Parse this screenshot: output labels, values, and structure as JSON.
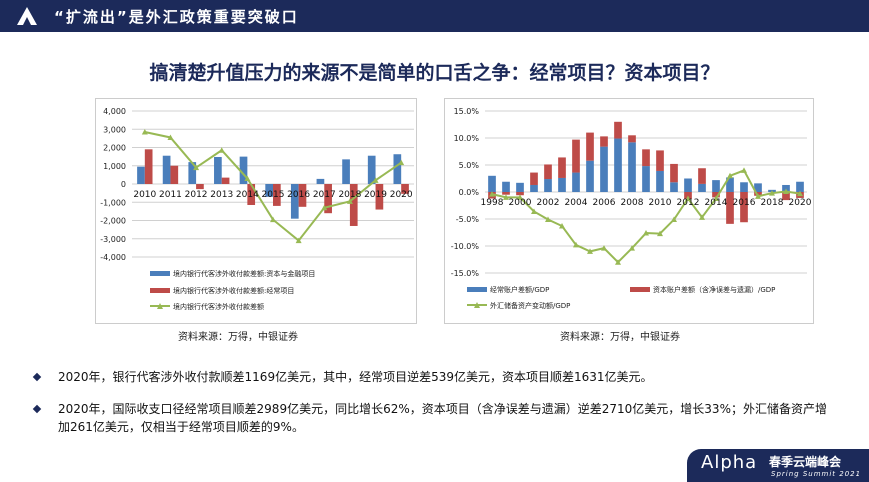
{
  "header": {
    "title": "“扩流出”是外汇政策重要突破口",
    "logo_icon": "alpha-triangle-icon"
  },
  "main_title": "搞清楚升值压力的来源不是简单的口舌之争：经常项目？资本项目？",
  "sources": {
    "left": "资料来源：万得，中银证券",
    "right": "资料来源：万得，中银证券"
  },
  "bullets": [
    "2020年，银行代客涉外收付款顺差1169亿美元，其中，经常项目逆差539亿美元，资本项目顺差1631亿美元。",
    "2020年，国际收支口径经常项目顺差2989亿美元，同比增长62%，资本项目（含净误差与遗漏）逆差2710亿美元，增长33%；外汇储备资产增加261亿美元，仅相当于经常项目顺差的9%。"
  ],
  "footer": {
    "brand": "Alpha",
    "event": "春季云端峰会",
    "sub": "Spring Summit 2021"
  },
  "chart_data": [
    {
      "type": "bar",
      "stacked": false,
      "ylim": [
        -4000,
        4000
      ],
      "yticks": [
        "4,000",
        "3,000",
        "2,000",
        "1,000",
        "0",
        "-1,000",
        "-2,000",
        "-3,000",
        "-4,000"
      ],
      "categories": [
        "2010",
        "2011",
        "2012",
        "2013",
        "2014",
        "2015",
        "2016",
        "2017",
        "2018",
        "2019",
        "2020"
      ],
      "grid": true,
      "legend": "bottom",
      "series": [
        {
          "name": "境内银行代客涉外收付款差额:资本与金融项目",
          "type": "bar",
          "color": "#4a7ebb",
          "values": [
            950,
            1550,
            1200,
            1480,
            1500,
            -700,
            -1900,
            280,
            1350,
            1550,
            1631
          ]
        },
        {
          "name": "境内银行代客涉外收付款差额:经常项目",
          "type": "bar",
          "color": "#be4b48",
          "values": [
            1900,
            1000,
            -280,
            350,
            -1150,
            -1200,
            -1250,
            -1600,
            -2300,
            -1400,
            -539
          ]
        },
        {
          "name": "境内银行代客涉外收付款差额",
          "type": "line",
          "color": "#98b954",
          "values": [
            2850,
            2550,
            900,
            1850,
            300,
            -1950,
            -3100,
            -1300,
            -950,
            200,
            1169
          ]
        }
      ]
    },
    {
      "type": "bar",
      "stacked": true,
      "ylim": [
        -15,
        15
      ],
      "yticks": [
        "15.0%",
        "10.0%",
        "5.0%",
        "0.0%",
        "-5.0%",
        "-10.0%",
        "-15.0%"
      ],
      "categories": [
        "1998",
        "1999",
        "2000",
        "2001",
        "2002",
        "2003",
        "2004",
        "2005",
        "2006",
        "2007",
        "2008",
        "2009",
        "2010",
        "2011",
        "2012",
        "2013",
        "2014",
        "2015",
        "2016",
        "2017",
        "2018",
        "2019",
        "2020"
      ],
      "xticklabels": [
        "1998",
        "2000",
        "2002",
        "2004",
        "2006",
        "2008",
        "2010",
        "2012",
        "2014",
        "2016",
        "2018",
        "2020"
      ],
      "grid": true,
      "legend": "bottom",
      "series": [
        {
          "name": "经常账户差额/GDP",
          "type": "bar",
          "color": "#4a7ebb",
          "values": [
            3.0,
            1.9,
            1.7,
            1.3,
            2.4,
            2.6,
            3.6,
            5.8,
            8.4,
            9.9,
            9.2,
            4.8,
            3.9,
            1.8,
            2.5,
            1.5,
            2.2,
            2.7,
            1.8,
            1.6,
            0.4,
            1.3,
            1.9
          ]
        },
        {
          "name": "资本账户差额（含净误差与遗漏）/GDP",
          "type": "bar",
          "color": "#be4b48",
          "values": [
            -1.2,
            -0.5,
            -0.6,
            2.3,
            2.7,
            3.8,
            6.1,
            5.2,
            1.9,
            3.1,
            1.3,
            3.1,
            3.8,
            3.4,
            -1.3,
            2.9,
            -1.0,
            -5.9,
            -5.6,
            -0.7,
            0.0,
            -1.5,
            -1.1
          ]
        },
        {
          "name": "外汇储备资产变动额/GDP",
          "type": "line",
          "color": "#98b954",
          "values": [
            -0.4,
            -1.0,
            -1.0,
            -3.6,
            -5.1,
            -6.3,
            -9.8,
            -11.0,
            -10.4,
            -13.0,
            -10.4,
            -7.6,
            -7.7,
            -5.1,
            -1.2,
            -4.7,
            -1.2,
            3.0,
            4.0,
            -0.8,
            -0.2,
            0.1,
            -0.3
          ]
        }
      ]
    }
  ]
}
